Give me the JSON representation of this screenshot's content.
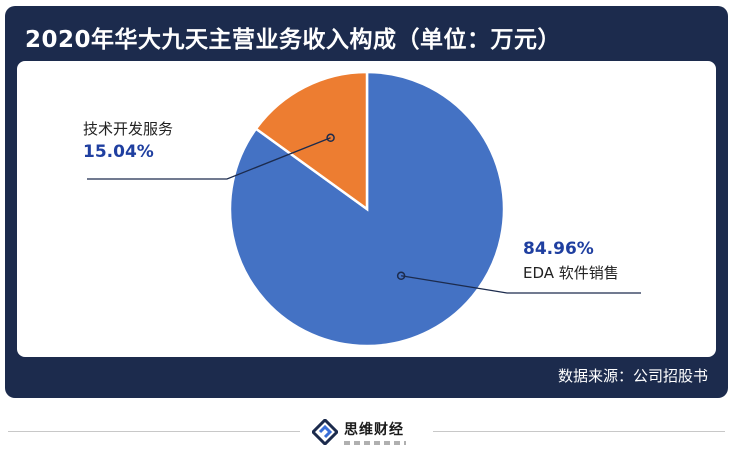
{
  "title": "2020年华大九天主营业务收入构成（单位：万元）",
  "source": "数据来源：公司招股书",
  "brand": {
    "name": "思维财经"
  },
  "colors": {
    "eda": "#4472c4",
    "tech": "#ed7d31",
    "card": "#1c2b4d",
    "pct": "#1f3fa0"
  },
  "chart_data": {
    "type": "pie",
    "start_angle_deg": 0,
    "slices": [
      {
        "label": "EDA 软件销售",
        "percent_label": "84.96%",
        "value": 84.96,
        "color": "#4472c4"
      },
      {
        "label": "技术开发服务",
        "percent_label": "15.04%",
        "value": 15.04,
        "color": "#ed7d31"
      }
    ]
  }
}
